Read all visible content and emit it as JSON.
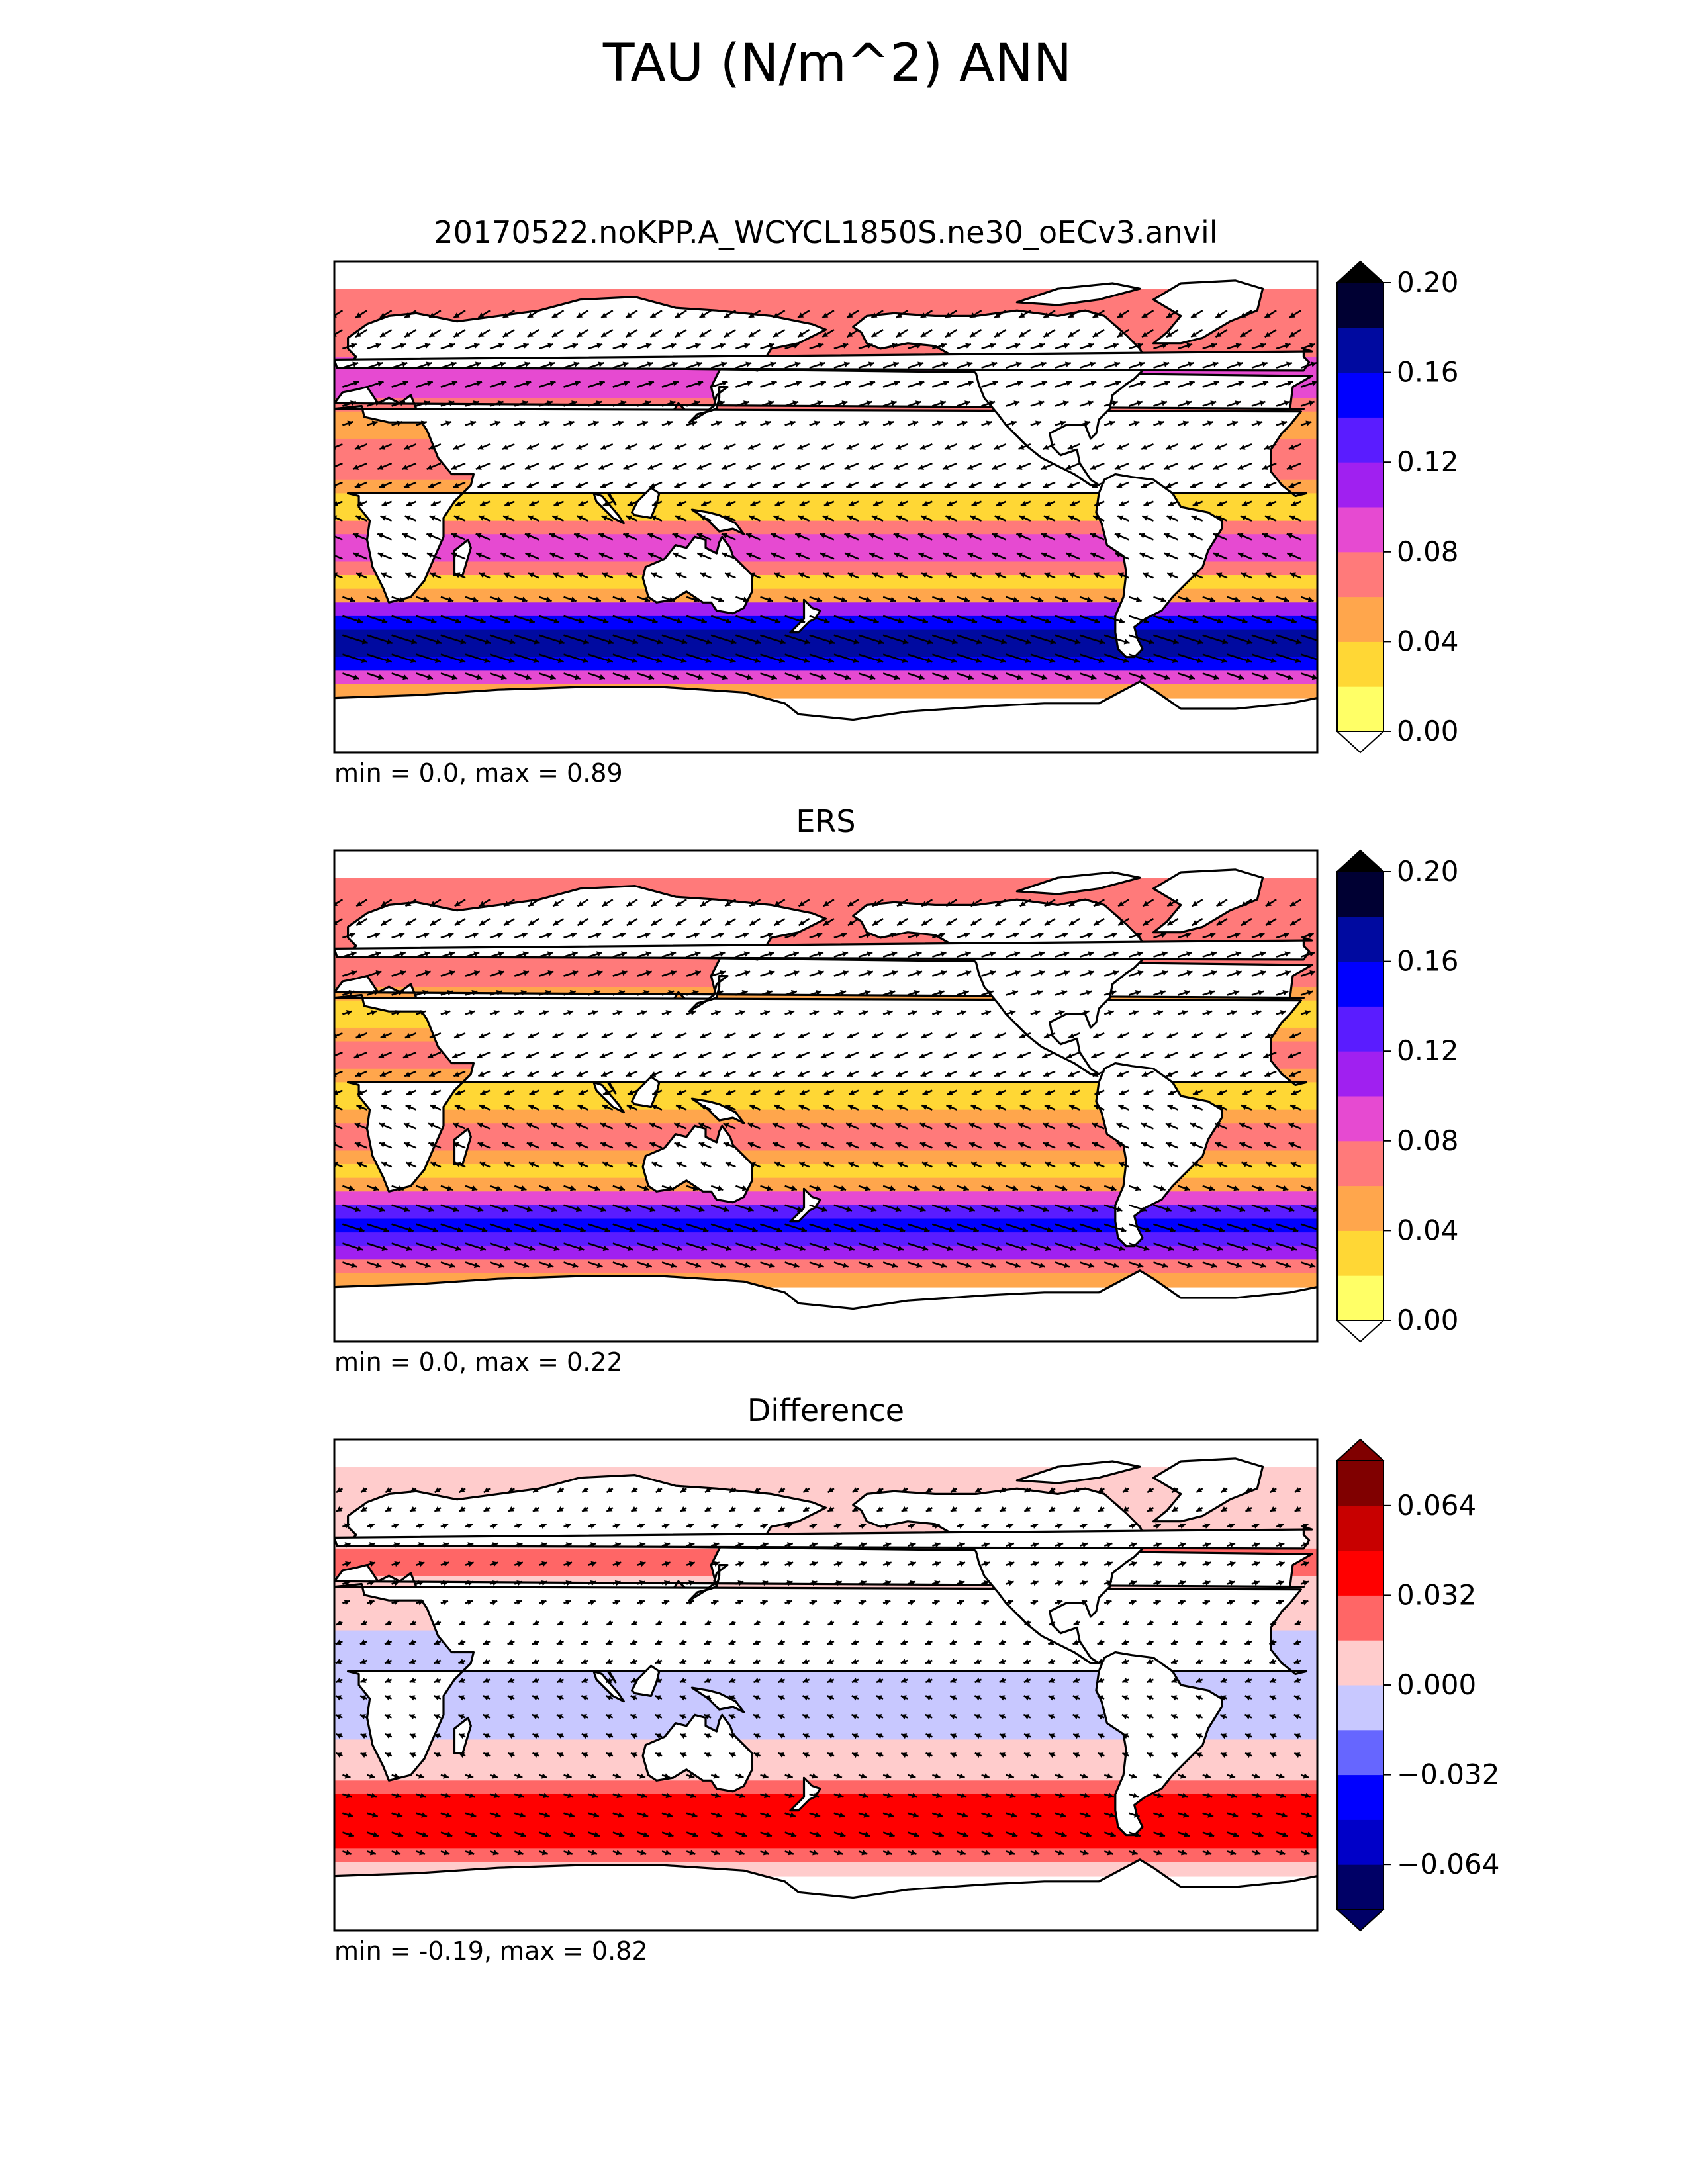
{
  "figure": {
    "title": "TAU (N/m^2) ANN"
  },
  "colors": {
    "sequential": [
      "#ffff66",
      "#ffd735",
      "#ffa64c",
      "#ff7a7a",
      "#e64ad1",
      "#a020f0",
      "#5a1cff",
      "#0000ff",
      "#000aa0",
      "#000033"
    ],
    "diverging": [
      "#000066",
      "#0000c8",
      "#0000ff",
      "#6666ff",
      "#c8c8ff",
      "#ffcccc",
      "#ff6666",
      "#ff0000",
      "#c80000",
      "#800000"
    ],
    "land": "#ffffff",
    "coast": "#000000"
  },
  "chart_data": [
    {
      "type": "heatmap",
      "subtype": "vector-field-map",
      "title": "20170522.noKPP.A_WCYCL1850S.ne30_oECv3.anvil",
      "stats": "min = 0.0, max = 0.89",
      "colorbar": {
        "ticks": [
          0.0,
          0.04,
          0.08,
          0.12,
          0.16,
          0.2
        ],
        "tick_labels": [
          "0.00",
          "0.04",
          "0.08",
          "0.12",
          "0.16",
          "0.20"
        ],
        "levels": [
          0.0,
          0.02,
          0.04,
          0.06,
          0.08,
          0.1,
          0.12,
          0.14,
          0.16,
          0.18,
          0.2
        ],
        "extend": "both",
        "palette": "sequential"
      },
      "fields": {
        "zonal_bands": [
          {
            "lat": 60,
            "value": 0.07
          },
          {
            "lat": 45,
            "value": 0.1
          },
          {
            "lat": 30,
            "value": 0.04
          },
          {
            "lat": 15,
            "value": 0.08
          },
          {
            "lat": 0,
            "value": 0.03
          },
          {
            "lat": -15,
            "value": 0.09
          },
          {
            "lat": -30,
            "value": 0.03
          },
          {
            "lat": -45,
            "value": 0.18
          },
          {
            "lat": -55,
            "value": 0.17
          },
          {
            "lat": -65,
            "value": 0.05
          }
        ]
      }
    },
    {
      "type": "heatmap",
      "subtype": "vector-field-map",
      "title": "ERS",
      "stats": "min = 0.0, max = 0.22",
      "colorbar": {
        "ticks": [
          0.0,
          0.04,
          0.08,
          0.12,
          0.16,
          0.2
        ],
        "tick_labels": [
          "0.00",
          "0.04",
          "0.08",
          "0.12",
          "0.16",
          "0.20"
        ],
        "levels": [
          0.0,
          0.02,
          0.04,
          0.06,
          0.08,
          0.1,
          0.12,
          0.14,
          0.16,
          0.18,
          0.2
        ],
        "extend": "both",
        "palette": "sequential"
      },
      "fields": {
        "zonal_bands": [
          {
            "lat": 60,
            "value": 0.06
          },
          {
            "lat": 45,
            "value": 0.08
          },
          {
            "lat": 30,
            "value": 0.03
          },
          {
            "lat": 15,
            "value": 0.07
          },
          {
            "lat": 0,
            "value": 0.03
          },
          {
            "lat": -15,
            "value": 0.07
          },
          {
            "lat": -30,
            "value": 0.03
          },
          {
            "lat": -45,
            "value": 0.15
          },
          {
            "lat": -55,
            "value": 0.13
          },
          {
            "lat": -65,
            "value": 0.04
          }
        ]
      }
    },
    {
      "type": "heatmap",
      "subtype": "vector-field-map",
      "title": "Difference",
      "stats": "min = -0.19, max = 0.82",
      "colorbar": {
        "ticks": [
          -0.064,
          -0.032,
          0.0,
          0.032,
          0.064
        ],
        "tick_labels": [
          "−0.064",
          "−0.032",
          "0.000",
          "0.032",
          "0.064"
        ],
        "levels": [
          -0.08,
          -0.064,
          -0.048,
          -0.032,
          -0.016,
          0.0,
          0.016,
          0.032,
          0.048,
          0.064,
          0.08
        ],
        "extend": "both",
        "palette": "diverging"
      },
      "fields": {
        "zonal_bands": [
          {
            "lat": 60,
            "value": 0.01
          },
          {
            "lat": 45,
            "value": 0.02
          },
          {
            "lat": 30,
            "value": 0.01
          },
          {
            "lat": 15,
            "value": -0.01
          },
          {
            "lat": 0,
            "value": -0.005
          },
          {
            "lat": -15,
            "value": -0.01
          },
          {
            "lat": -30,
            "value": 0.01
          },
          {
            "lat": -45,
            "value": 0.04
          },
          {
            "lat": -55,
            "value": 0.05
          },
          {
            "lat": -65,
            "value": 0.005
          }
        ]
      }
    }
  ]
}
